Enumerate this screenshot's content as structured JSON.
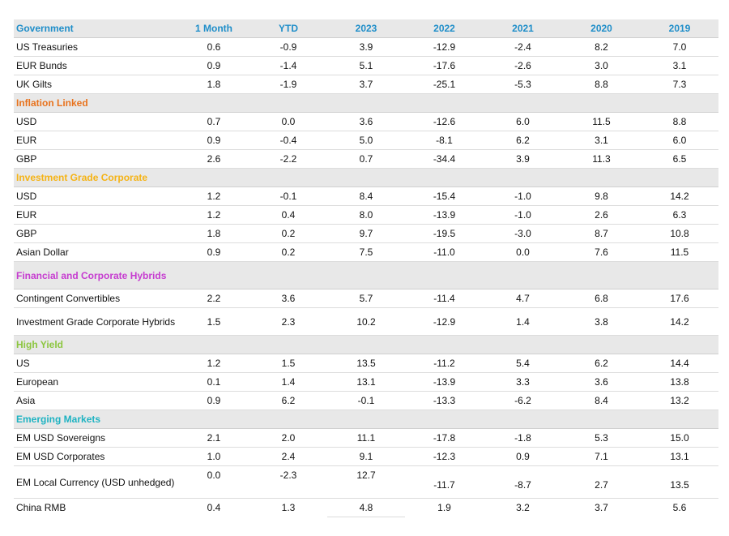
{
  "header": {
    "label": "Government",
    "columns": [
      "1 Month",
      "YTD",
      "2023",
      "2022",
      "2021",
      "2020",
      "2019"
    ],
    "color": "#1f8ec9"
  },
  "sections": [
    {
      "name": "Government",
      "color": "#1f8ec9",
      "rows": [
        {
          "label": "US Treasuries",
          "values": [
            "0.6",
            "-0.9",
            "3.9",
            "-12.9",
            "-2.4",
            "8.2",
            "7.0"
          ]
        },
        {
          "label": "EUR Bunds",
          "values": [
            "0.9",
            "-1.4",
            "5.1",
            "-17.6",
            "-2.6",
            "3.0",
            "3.1"
          ]
        },
        {
          "label": "UK Gilts",
          "values": [
            "1.8",
            "-1.9",
            "3.7",
            "-25.1",
            "-5.3",
            "8.8",
            "7.3"
          ]
        }
      ]
    },
    {
      "name": "Inflation Linked",
      "color": "#e8731e",
      "rows": [
        {
          "label": "USD",
          "values": [
            "0.7",
            "0.0",
            "3.6",
            "-12.6",
            "6.0",
            "11.5",
            "8.8"
          ]
        },
        {
          "label": "EUR",
          "values": [
            "0.9",
            "-0.4",
            "5.0",
            "-8.1",
            "6.2",
            "3.1",
            "6.0"
          ]
        },
        {
          "label": "GBP",
          "values": [
            "2.6",
            "-2.2",
            "0.7",
            "-34.4",
            "3.9",
            "11.3",
            "6.5"
          ]
        }
      ]
    },
    {
      "name": "Investment Grade Corporate",
      "color": "#f5b315",
      "rows": [
        {
          "label": "USD",
          "values": [
            "1.2",
            "-0.1",
            "8.4",
            "-15.4",
            "-1.0",
            "9.8",
            "14.2"
          ]
        },
        {
          "label": "EUR",
          "values": [
            "1.2",
            "0.4",
            "8.0",
            "-13.9",
            "-1.0",
            "2.6",
            "6.3"
          ]
        },
        {
          "label": "GBP",
          "values": [
            "1.8",
            "0.2",
            "9.7",
            "-19.5",
            "-3.0",
            "8.7",
            "10.8"
          ]
        },
        {
          "label": "Asian Dollar",
          "values": [
            "0.9",
            "0.2",
            "7.5",
            "-11.0",
            "0.0",
            "7.6",
            "11.5"
          ]
        }
      ]
    },
    {
      "name": "Financial and Corporate Hybrids",
      "color": "#c63cd0",
      "rows": [
        {
          "label": "Contingent Convertibles",
          "values": [
            "2.2",
            "3.6",
            "5.7",
            "-11.4",
            "4.7",
            "6.8",
            "17.6"
          ]
        },
        {
          "label": "Investment Grade Corporate Hybrids",
          "values": [
            "1.5",
            "2.3",
            "10.2",
            "-12.9",
            "1.4",
            "3.8",
            "14.2"
          ]
        }
      ]
    },
    {
      "name": "High Yield",
      "color": "#8cc63f",
      "rows": [
        {
          "label": "US",
          "values": [
            "1.2",
            "1.5",
            "13.5",
            "-11.2",
            "5.4",
            "6.2",
            "14.4"
          ]
        },
        {
          "label": "European",
          "values": [
            "0.1",
            "1.4",
            "13.1",
            "-13.9",
            "3.3",
            "3.6",
            "13.8"
          ]
        },
        {
          "label": "Asia",
          "values": [
            "0.9",
            "6.2",
            "-0.1",
            "-13.3",
            "-6.2",
            "8.4",
            "13.2"
          ]
        }
      ]
    },
    {
      "name": "Emerging Markets",
      "color": "#1fb3c2",
      "rows": [
        {
          "label": "EM USD Sovereigns",
          "values": [
            "2.1",
            "2.0",
            "11.1",
            "-17.8",
            "-1.8",
            "5.3",
            "15.0"
          ]
        },
        {
          "label": "EM USD Corporates",
          "values": [
            "1.0",
            "2.4",
            "9.1",
            "-12.3",
            "0.9",
            "7.1",
            "13.1"
          ]
        },
        {
          "label": "EM Local Currency (USD unhedged)",
          "values": [
            "0.0",
            "-2.3",
            "12.7",
            "-11.7",
            "-8.7",
            "2.7",
            "13.5"
          ]
        },
        {
          "label": "China RMB",
          "values": [
            "0.4",
            "1.3",
            "4.8",
            "1.9",
            "3.2",
            "3.7",
            "5.6"
          ]
        }
      ]
    }
  ]
}
